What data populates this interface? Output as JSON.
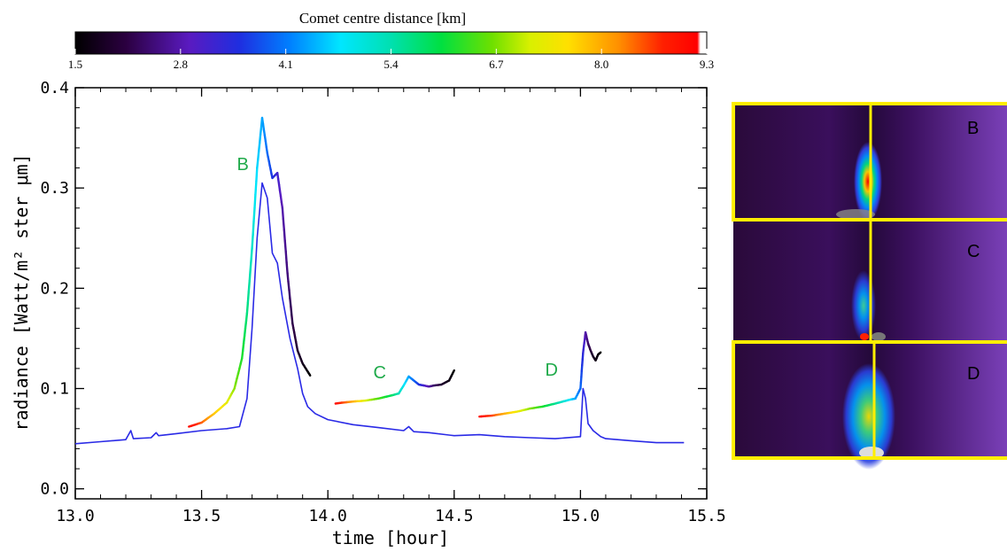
{
  "colorbar": {
    "title": "Comet centre distance [km]",
    "ticks": [
      "1.5",
      "2.8",
      "4.1",
      "5.4",
      "6.7",
      "8.0",
      "9.3"
    ],
    "range": [
      1.5,
      9.3
    ]
  },
  "chart_data": {
    "type": "line",
    "xlabel": "time [hour]",
    "ylabel": "radiance [Watt/m² ster μm]",
    "xlim": [
      13.0,
      15.5
    ],
    "ylim": [
      -0.01,
      0.4
    ],
    "xticks": [
      "13.0",
      "13.5",
      "14.0",
      "14.5",
      "15.0",
      "15.5"
    ],
    "yticks": [
      "0.0",
      "0.1",
      "0.2",
      "0.3",
      "0.4"
    ],
    "grid": false,
    "annotations": [
      {
        "text": "B",
        "x": 13.64,
        "y": 0.318,
        "color": "#1faa4a"
      },
      {
        "text": "C",
        "x": 14.18,
        "y": 0.11,
        "color": "#1faa4a"
      },
      {
        "text": "D",
        "x": 14.86,
        "y": 0.113,
        "color": "#1faa4a"
      }
    ],
    "baseline": {
      "color": "#2a2ae6",
      "x": [
        13.0,
        13.1,
        13.2,
        13.22,
        13.23,
        13.3,
        13.32,
        13.33,
        13.4,
        13.5,
        13.6,
        13.65,
        13.68,
        13.7,
        13.72,
        13.74,
        13.76,
        13.78,
        13.8,
        13.82,
        13.85,
        13.88,
        13.9,
        13.92,
        13.95,
        14.0,
        14.1,
        14.2,
        14.3,
        14.32,
        14.34,
        14.4,
        14.5,
        14.6,
        14.7,
        14.8,
        14.9,
        15.0,
        15.01,
        15.02,
        15.03,
        15.05,
        15.08,
        15.1,
        15.2,
        15.3,
        15.41
      ],
      "y": [
        0.045,
        0.047,
        0.049,
        0.058,
        0.05,
        0.051,
        0.056,
        0.053,
        0.055,
        0.058,
        0.06,
        0.062,
        0.09,
        0.16,
        0.25,
        0.305,
        0.29,
        0.235,
        0.225,
        0.19,
        0.15,
        0.12,
        0.095,
        0.082,
        0.075,
        0.069,
        0.064,
        0.061,
        0.058,
        0.062,
        0.057,
        0.056,
        0.053,
        0.054,
        0.052,
        0.051,
        0.05,
        0.052,
        0.1,
        0.09,
        0.065,
        0.058,
        0.052,
        0.05,
        0.048,
        0.046,
        0.046
      ]
    },
    "series": [
      {
        "segment": "B",
        "x": [
          13.45,
          13.5,
          13.55,
          13.6,
          13.63,
          13.66,
          13.68,
          13.7,
          13.72,
          13.74,
          13.76,
          13.78,
          13.8,
          13.82,
          13.84,
          13.86,
          13.88,
          13.9,
          13.92,
          13.93
        ],
        "y": [
          0.062,
          0.066,
          0.075,
          0.086,
          0.1,
          0.13,
          0.175,
          0.24,
          0.32,
          0.37,
          0.335,
          0.31,
          0.315,
          0.28,
          0.215,
          0.165,
          0.138,
          0.125,
          0.117,
          0.113
        ],
        "distance": [
          9.1,
          8.5,
          7.8,
          7.3,
          6.8,
          6.2,
          5.7,
          5.2,
          4.7,
          4.4,
          4.0,
          3.6,
          3.2,
          2.8,
          2.5,
          2.2,
          2.0,
          1.8,
          1.6,
          1.5
        ]
      },
      {
        "segment": "C",
        "x": [
          14.03,
          14.06,
          14.1,
          14.15,
          14.2,
          14.25,
          14.28,
          14.3,
          14.32,
          14.34,
          14.36,
          14.38,
          14.4,
          14.42,
          14.45,
          14.48,
          14.5
        ],
        "y": [
          0.085,
          0.086,
          0.087,
          0.088,
          0.09,
          0.093,
          0.095,
          0.103,
          0.112,
          0.108,
          0.104,
          0.103,
          0.102,
          0.103,
          0.104,
          0.108,
          0.118
        ],
        "distance": [
          9.1,
          8.6,
          8.0,
          7.2,
          6.5,
          5.9,
          5.4,
          4.9,
          4.4,
          4.0,
          3.6,
          3.2,
          2.8,
          2.4,
          2.0,
          1.7,
          1.5
        ]
      },
      {
        "segment": "D",
        "x": [
          14.6,
          14.65,
          14.7,
          14.75,
          14.8,
          14.85,
          14.9,
          14.93,
          14.96,
          14.98,
          15.0,
          15.01,
          15.02,
          15.03,
          15.04,
          15.05,
          15.06,
          15.07,
          15.08
        ],
        "y": [
          0.072,
          0.073,
          0.075,
          0.077,
          0.08,
          0.082,
          0.085,
          0.087,
          0.089,
          0.09,
          0.1,
          0.135,
          0.156,
          0.145,
          0.138,
          0.132,
          0.128,
          0.134,
          0.136
        ],
        "distance": [
          9.1,
          8.6,
          8.0,
          7.4,
          6.8,
          6.2,
          5.6,
          5.2,
          4.8,
          4.4,
          4.0,
          3.4,
          2.8,
          2.4,
          2.1,
          1.9,
          1.7,
          1.6,
          1.5
        ]
      }
    ]
  },
  "panels": [
    {
      "label": "B"
    },
    {
      "label": "C"
    },
    {
      "label": "D"
    }
  ]
}
